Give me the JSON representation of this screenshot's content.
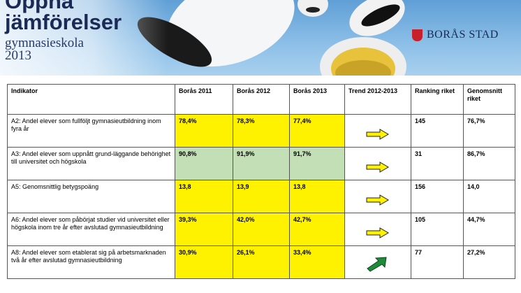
{
  "header": {
    "title_lines": [
      "Öppna",
      "jämförelser"
    ],
    "subtitle_lines": [
      "gymnasieskola",
      "2013"
    ],
    "logo": "BORÅS STAD"
  },
  "table": {
    "header": [
      "Indikator",
      "Borås 2011",
      "Borås 2012",
      "Borås 2013",
      "Trend 2012-2013",
      "Ranking riket",
      "Genomsnitt riket"
    ],
    "rows": [
      [
        "A2: Andel elever som fullföljt gymnasieutbildning inom fyra år",
        "78,4%",
        "78,3%",
        "77,4%",
        "",
        "145",
        "76,7%"
      ],
      [
        "A3: Andel elever som uppnått grund-läggande behörighet till universitet och högskola",
        "90,8%",
        "91,9%",
        "91,7%",
        "",
        "31",
        "86,7%"
      ],
      [
        "A5: Genomsnittlig betygspoäng",
        "13,8",
        "13,9",
        "13,8",
        "",
        "156",
        "14,0"
      ],
      [
        "A6: Andel elever som påbörjat studier vid universitet eller högskola inom tre år efter avslutad gymnasieutbildning",
        "39,3%",
        "42,0%",
        "42,7%",
        "",
        "105",
        "44,7%"
      ],
      [
        "A8: Andel elever som etablerat sig på arbetsmarknaden två år efter avslutad  gymnasieutbildning",
        "30,9%",
        "26,1%",
        "33,4%",
        "",
        "77",
        "27,2%"
      ]
    ]
  }
}
